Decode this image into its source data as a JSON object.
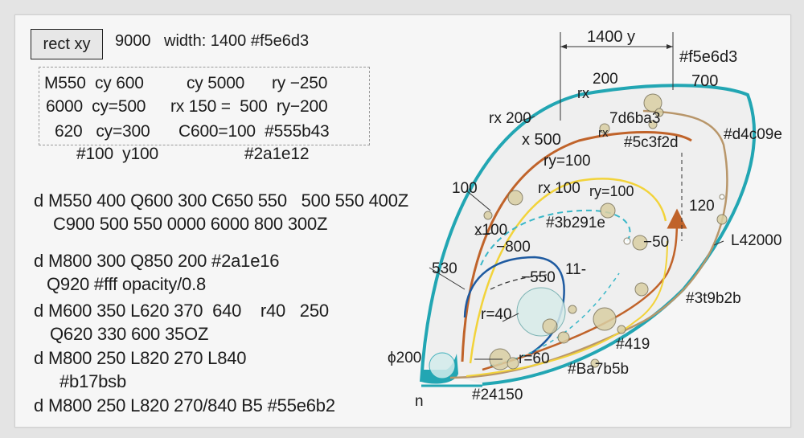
{
  "header": {
    "tag": "rect  xy",
    "value": "9000",
    "width_label": "width: 1400 #f5e6d3"
  },
  "box_lines": [
    "M550  cy 600",
    "cy 5000",
    "ry −250",
    "6000  cy=500",
    "rx 150 =  500  ry−200",
    "620   cy=300",
    "C600=100  #555b43",
    "#100  y100",
    "#2a1e12"
  ],
  "path_lines": [
    "d M550 400 Q600 300 C650 550   500 550 400Z",
    "C900 500 550 0000 6000 800 300Z",
    "d M800 300 Q850 200 #2a1e16",
    "Q920 #fff opacity/0.8",
    "d M600 350 L620 370  640    r40   250",
    "Q620 330 600 35OZ",
    "d M800 250 L820 270 L840",
    "#b17bsb",
    "d M800 250 L820 270/840 B5 #55e6b2"
  ],
  "diagram_labels": {
    "dim_top": "1400 y",
    "color_top": "#f5e6d3",
    "rx_200_top": "rx",
    "n200": "200",
    "n700": "700",
    "rx200": "rx 200",
    "c7d6ba3": "7d6ba3",
    "rx_small": "rx",
    "x500": "x 500",
    "c5c3f2d": "#5c3f2d",
    "cd4c09e": "#d4c09e",
    "ry100a": "ry=100",
    "n100": "100",
    "rx100": "rx 100",
    "ry100b": "ry=100",
    "n120": "120",
    "x100": "x100",
    "c3b291e": "#3b291e",
    "neg50": "−50",
    "neg800": "−800",
    "L42000": "L42000",
    "n530": "530",
    "n11": "11-",
    "neg550": "−550",
    "r40": "r=40",
    "c3t9b2b": "#3t9b2b",
    "c419": "#419",
    "phi200": "ϕ200",
    "r60": "r=60",
    "cBa7b5b": "#Ba7b5b",
    "c24150": "#24150",
    "n_label": "n"
  },
  "colors": {
    "teal": "#22a6b3",
    "brown": "#c0632a",
    "tan": "#b8966a",
    "yellow": "#f2d33a",
    "navy": "#1e5aa0",
    "cyan_dash": "#39b7c8",
    "bubble": "#d9cfa3"
  }
}
